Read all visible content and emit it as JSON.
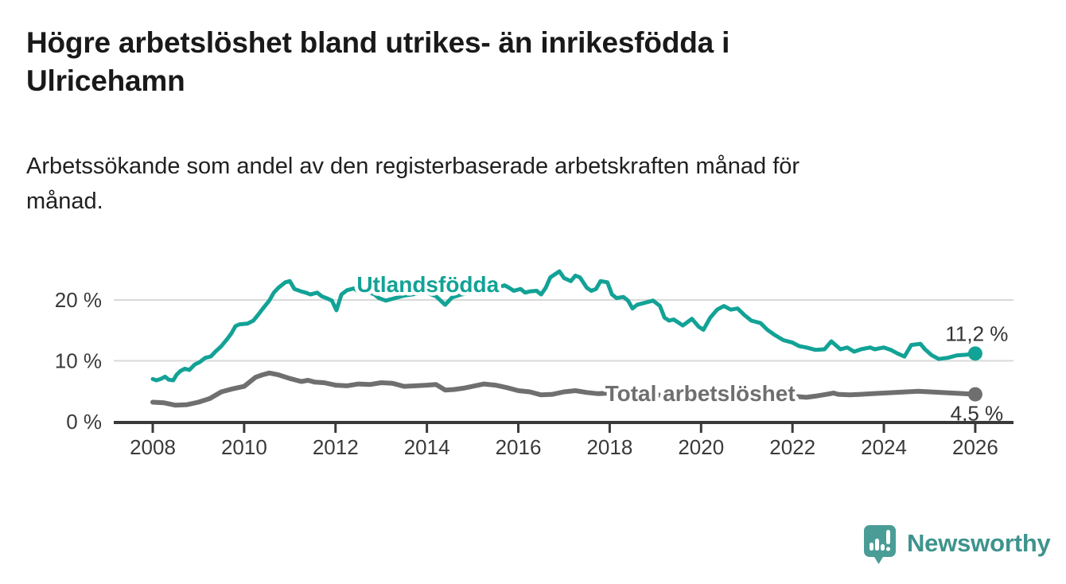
{
  "header": {
    "title_lines": [
      "Högre arbetslöshet bland utrikes- än inrikesfödda i",
      "Ulricehamn"
    ],
    "subtitle_lines": [
      "Arbetssökande som andel av den registerbaserade arbetskraften månad för",
      "månad."
    ]
  },
  "branding": {
    "logo_text": "Newsworthy",
    "text_color": "#3E948D",
    "bubble_color": "#4A9D97"
  },
  "chart_data": {
    "type": "line",
    "unit": "%",
    "grid": true,
    "legend_position": "inline-labels",
    "x_axis": {
      "tick_years": [
        2008,
        2010,
        2012,
        2014,
        2016,
        2018,
        2020,
        2022,
        2024,
        2026
      ],
      "range": [
        2007.7,
        2026.8
      ]
    },
    "y_axis": {
      "ticks": [
        0,
        10,
        20
      ],
      "gridlines": [
        10,
        20
      ],
      "suffix": " %",
      "range": [
        0,
        26
      ]
    },
    "colors": {
      "grid": "#D9D9D9",
      "axis": "#3A3A3A",
      "tick_label": "#3A3A3A",
      "value_label": "#333333"
    },
    "series": [
      {
        "name": "Utlandsfödda",
        "color": "#12A296",
        "line_width": 5,
        "end_value": 11.2,
        "end_label": "11,2 %",
        "end_label_position": "above",
        "label_anchor": {
          "year": 2014.02,
          "value": 22.5
        },
        "points": [
          [
            2008.0,
            7.0
          ],
          [
            2008.08,
            6.8
          ],
          [
            2008.17,
            7.0
          ],
          [
            2008.27,
            7.4
          ],
          [
            2008.35,
            6.9
          ],
          [
            2008.45,
            6.8
          ],
          [
            2008.52,
            7.7
          ],
          [
            2008.6,
            8.3
          ],
          [
            2008.7,
            8.7
          ],
          [
            2008.8,
            8.5
          ],
          [
            2008.92,
            9.4
          ],
          [
            2009.03,
            9.8
          ],
          [
            2009.15,
            10.5
          ],
          [
            2009.27,
            10.7
          ],
          [
            2009.37,
            11.5
          ],
          [
            2009.5,
            12.4
          ],
          [
            2009.62,
            13.5
          ],
          [
            2009.72,
            14.5
          ],
          [
            2009.81,
            15.7
          ],
          [
            2009.9,
            16.0
          ],
          [
            2010.07,
            16.1
          ],
          [
            2010.2,
            16.6
          ],
          [
            2010.3,
            17.5
          ],
          [
            2010.4,
            18.5
          ],
          [
            2010.55,
            19.9
          ],
          [
            2010.65,
            21.2
          ],
          [
            2010.75,
            22.0
          ],
          [
            2010.9,
            22.9
          ],
          [
            2011.0,
            23.1
          ],
          [
            2011.1,
            21.8
          ],
          [
            2011.25,
            21.4
          ],
          [
            2011.35,
            21.2
          ],
          [
            2011.45,
            20.9
          ],
          [
            2011.6,
            21.2
          ],
          [
            2011.7,
            20.6
          ],
          [
            2011.8,
            20.3
          ],
          [
            2011.92,
            19.9
          ],
          [
            2012.02,
            18.3
          ],
          [
            2012.13,
            20.9
          ],
          [
            2012.25,
            21.6
          ],
          [
            2012.4,
            21.9
          ],
          [
            2012.5,
            21.4
          ],
          [
            2012.6,
            21.2
          ],
          [
            2012.7,
            21.4
          ],
          [
            2012.85,
            20.9
          ],
          [
            2012.95,
            20.3
          ],
          [
            2013.1,
            19.9
          ],
          [
            2013.25,
            20.2
          ],
          [
            2013.5,
            20.7
          ],
          [
            2013.75,
            21.0
          ],
          [
            2014.0,
            21.2
          ],
          [
            2014.2,
            20.6
          ],
          [
            2014.4,
            19.2
          ],
          [
            2014.55,
            20.4
          ],
          [
            2014.75,
            20.9
          ],
          [
            2015.0,
            21.2
          ],
          [
            2015.25,
            21.6
          ],
          [
            2015.5,
            21.9
          ],
          [
            2015.7,
            22.4
          ],
          [
            2015.8,
            22.0
          ],
          [
            2015.9,
            21.5
          ],
          [
            2016.05,
            21.8
          ],
          [
            2016.15,
            21.2
          ],
          [
            2016.25,
            21.4
          ],
          [
            2016.4,
            21.5
          ],
          [
            2016.5,
            20.9
          ],
          [
            2016.6,
            22.0
          ],
          [
            2016.7,
            23.7
          ],
          [
            2016.9,
            24.7
          ],
          [
            2017.0,
            23.6
          ],
          [
            2017.15,
            23.1
          ],
          [
            2017.25,
            24.0
          ],
          [
            2017.35,
            23.7
          ],
          [
            2017.5,
            22.0
          ],
          [
            2017.6,
            21.5
          ],
          [
            2017.7,
            21.8
          ],
          [
            2017.8,
            23.1
          ],
          [
            2017.95,
            22.9
          ],
          [
            2018.05,
            20.9
          ],
          [
            2018.15,
            20.3
          ],
          [
            2018.3,
            20.5
          ],
          [
            2018.4,
            19.9
          ],
          [
            2018.5,
            18.6
          ],
          [
            2018.6,
            19.2
          ],
          [
            2018.75,
            19.5
          ],
          [
            2018.85,
            19.7
          ],
          [
            2018.95,
            19.9
          ],
          [
            2019.1,
            19.0
          ],
          [
            2019.2,
            17.1
          ],
          [
            2019.3,
            16.6
          ],
          [
            2019.4,
            16.8
          ],
          [
            2019.6,
            15.8
          ],
          [
            2019.8,
            16.9
          ],
          [
            2019.95,
            15.6
          ],
          [
            2020.05,
            15.1
          ],
          [
            2020.2,
            17.1
          ],
          [
            2020.35,
            18.4
          ],
          [
            2020.5,
            19.0
          ],
          [
            2020.65,
            18.4
          ],
          [
            2020.8,
            18.6
          ],
          [
            2020.95,
            17.5
          ],
          [
            2021.1,
            16.6
          ],
          [
            2021.3,
            16.2
          ],
          [
            2021.45,
            15.1
          ],
          [
            2021.6,
            14.3
          ],
          [
            2021.8,
            13.4
          ],
          [
            2022.0,
            13.0
          ],
          [
            2022.15,
            12.4
          ],
          [
            2022.3,
            12.2
          ],
          [
            2022.5,
            11.8
          ],
          [
            2022.7,
            11.9
          ],
          [
            2022.85,
            13.2
          ],
          [
            2023.05,
            11.9
          ],
          [
            2023.2,
            12.2
          ],
          [
            2023.35,
            11.5
          ],
          [
            2023.5,
            11.9
          ],
          [
            2023.7,
            12.2
          ],
          [
            2023.8,
            11.9
          ],
          [
            2024.0,
            12.2
          ],
          [
            2024.15,
            11.8
          ],
          [
            2024.3,
            11.2
          ],
          [
            2024.45,
            10.7
          ],
          [
            2024.6,
            12.6
          ],
          [
            2024.8,
            12.8
          ],
          [
            2024.9,
            11.9
          ],
          [
            2025.05,
            10.9
          ],
          [
            2025.2,
            10.3
          ],
          [
            2025.4,
            10.5
          ],
          [
            2025.6,
            10.9
          ],
          [
            2025.8,
            11.0
          ],
          [
            2026.0,
            11.2
          ]
        ]
      },
      {
        "name": "Total arbetslöshet",
        "color": "#6F6F6F",
        "line_width": 6,
        "end_value": 4.5,
        "end_label": "4,5 %",
        "end_label_position": "below",
        "label_anchor": {
          "year": 2019.98,
          "value": 4.6
        },
        "points": [
          [
            2008.0,
            3.2
          ],
          [
            2008.25,
            3.1
          ],
          [
            2008.5,
            2.7
          ],
          [
            2008.75,
            2.8
          ],
          [
            2009.0,
            3.2
          ],
          [
            2009.25,
            3.8
          ],
          [
            2009.5,
            4.9
          ],
          [
            2009.75,
            5.4
          ],
          [
            2010.0,
            5.8
          ],
          [
            2010.25,
            7.3
          ],
          [
            2010.4,
            7.7
          ],
          [
            2010.55,
            8.0
          ],
          [
            2010.75,
            7.7
          ],
          [
            2011.0,
            7.1
          ],
          [
            2011.25,
            6.6
          ],
          [
            2011.4,
            6.8
          ],
          [
            2011.55,
            6.5
          ],
          [
            2011.75,
            6.4
          ],
          [
            2012.0,
            6.0
          ],
          [
            2012.25,
            5.9
          ],
          [
            2012.5,
            6.2
          ],
          [
            2012.75,
            6.1
          ],
          [
            2013.0,
            6.4
          ],
          [
            2013.25,
            6.3
          ],
          [
            2013.5,
            5.8
          ],
          [
            2013.75,
            5.9
          ],
          [
            2014.0,
            6.0
          ],
          [
            2014.2,
            6.1
          ],
          [
            2014.4,
            5.2
          ],
          [
            2014.6,
            5.3
          ],
          [
            2014.8,
            5.5
          ],
          [
            2015.0,
            5.8
          ],
          [
            2015.25,
            6.2
          ],
          [
            2015.5,
            6.0
          ],
          [
            2015.75,
            5.6
          ],
          [
            2016.0,
            5.1
          ],
          [
            2016.25,
            4.9
          ],
          [
            2016.5,
            4.4
          ],
          [
            2016.75,
            4.5
          ],
          [
            2017.0,
            4.9
          ],
          [
            2017.25,
            5.1
          ],
          [
            2017.5,
            4.8
          ],
          [
            2017.75,
            4.6
          ],
          [
            2018.0,
            4.7
          ],
          [
            2018.25,
            4.6
          ],
          [
            2018.5,
            4.5
          ],
          [
            2018.75,
            4.4
          ],
          [
            2019.0,
            4.4
          ],
          [
            2019.25,
            4.3
          ],
          [
            2019.5,
            4.2
          ],
          [
            2019.75,
            4.3
          ],
          [
            2020.0,
            4.5
          ],
          [
            2020.25,
            5.0
          ],
          [
            2020.5,
            5.3
          ],
          [
            2020.75,
            5.2
          ],
          [
            2021.0,
            5.0
          ],
          [
            2021.25,
            4.8
          ],
          [
            2021.5,
            4.6
          ],
          [
            2021.75,
            4.4
          ],
          [
            2022.0,
            4.2
          ],
          [
            2022.15,
            4.1
          ],
          [
            2022.3,
            4.0
          ],
          [
            2022.5,
            4.2
          ],
          [
            2022.75,
            4.5
          ],
          [
            2022.9,
            4.7
          ],
          [
            2023.0,
            4.5
          ],
          [
            2023.25,
            4.4
          ],
          [
            2023.5,
            4.5
          ],
          [
            2023.75,
            4.6
          ],
          [
            2024.0,
            4.7
          ],
          [
            2024.25,
            4.8
          ],
          [
            2024.5,
            4.9
          ],
          [
            2024.75,
            5.0
          ],
          [
            2025.0,
            4.9
          ],
          [
            2025.25,
            4.8
          ],
          [
            2025.5,
            4.7
          ],
          [
            2025.75,
            4.6
          ],
          [
            2026.0,
            4.5
          ]
        ]
      }
    ]
  }
}
